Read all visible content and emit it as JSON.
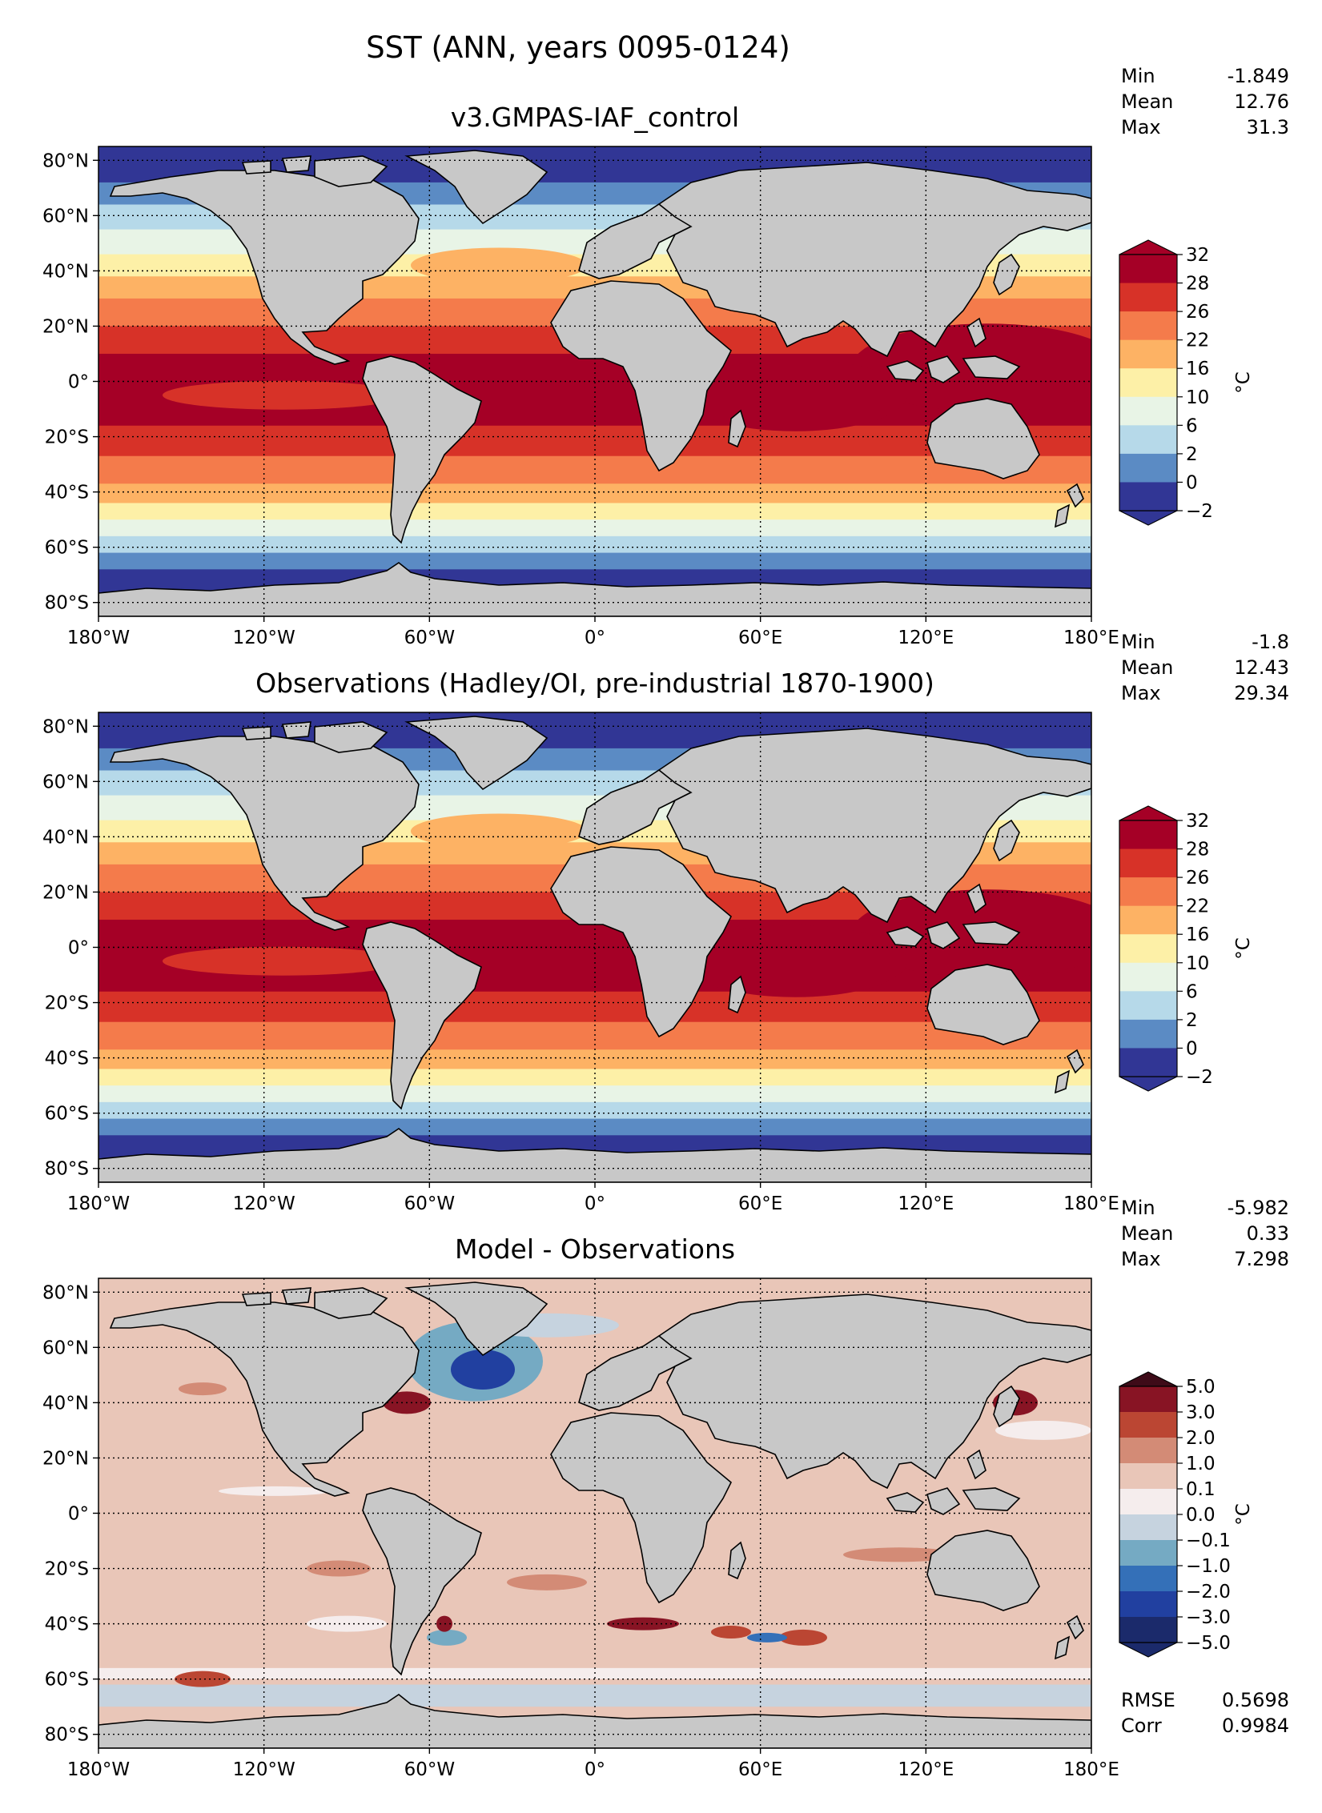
{
  "figure": {
    "title": "SST (ANN, years 0095-0124)"
  },
  "colors": {
    "land": "#c8c8c8",
    "sst_palette": [
      "#313695",
      "#5b8bc4",
      "#b6d9e9",
      "#e8f4e6",
      "#fdf0a7",
      "#fdb264",
      "#f47b4b",
      "#d73228",
      "#a50026"
    ],
    "diff_palette": [
      "#1b2a6b",
      "#2140a0",
      "#3470b8",
      "#75aac3",
      "#c6d3df",
      "#f5eded",
      "#e9c6b8",
      "#d38b76",
      "#bb4633",
      "#881424",
      "#3e0b18"
    ]
  },
  "panels": [
    {
      "title": "v3.GMPAS-IAF_control",
      "stats": {
        "min_label": "Min",
        "min": "-1.849",
        "mean_label": "Mean",
        "mean": "12.76",
        "max_label": "Max",
        "max": "31.3"
      },
      "colorbar": {
        "levels": [
          "32",
          "28",
          "26",
          "22",
          "16",
          "10",
          "6",
          "2",
          "0",
          "−2"
        ],
        "unit": "°C"
      },
      "map_type": "sst"
    },
    {
      "title": "Observations (Hadley/OI, pre-industrial 1870-1900)",
      "stats": {
        "min_label": "Min",
        "min": "-1.8",
        "mean_label": "Mean",
        "mean": "12.43",
        "max_label": "Max",
        "max": "29.34"
      },
      "colorbar": {
        "levels": [
          "32",
          "28",
          "26",
          "22",
          "16",
          "10",
          "6",
          "2",
          "0",
          "−2"
        ],
        "unit": "°C"
      },
      "map_type": "sst"
    },
    {
      "title": "Model - Observations",
      "stats": {
        "min_label": "Min",
        "min": "-5.982",
        "mean_label": "Mean",
        "mean": "0.33",
        "max_label": "Max",
        "max": "7.298"
      },
      "colorbar": {
        "levels": [
          "5.0",
          "3.0",
          "2.0",
          "1.0",
          "0.1",
          "0.0",
          "−0.1",
          "−1.0",
          "−2.0",
          "−3.0",
          "−5.0"
        ],
        "unit": "°C"
      },
      "map_type": "diff",
      "rmse_label": "RMSE",
      "rmse": "0.5698",
      "corr_label": "Corr",
      "corr": "0.9984"
    }
  ],
  "axes": {
    "lat_ticks": [
      "80°N",
      "60°N",
      "40°N",
      "20°N",
      "0°",
      "20°S",
      "40°S",
      "60°S",
      "80°S"
    ],
    "lon_ticks": [
      "180°W",
      "120°W",
      "60°W",
      "0°",
      "60°E",
      "120°E",
      "180°E"
    ]
  }
}
